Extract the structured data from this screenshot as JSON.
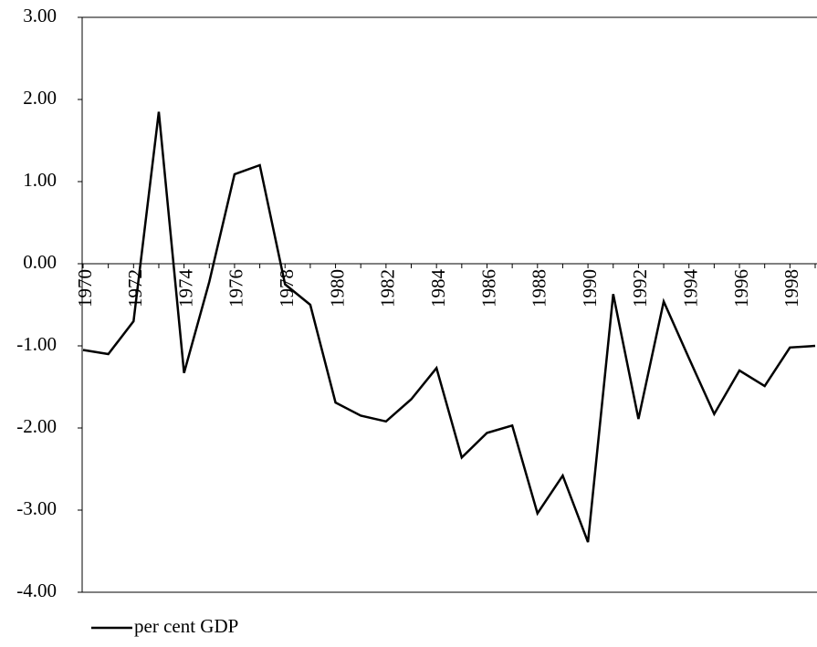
{
  "chart_data": {
    "type": "line",
    "categories": [
      "1970",
      null,
      "1972",
      null,
      "1974",
      null,
      "1976",
      null,
      "1978",
      null,
      "1980",
      null,
      "1982",
      null,
      "1984",
      null,
      "1986",
      null,
      "1988",
      null,
      "1990",
      null,
      "1992",
      null,
      "1994",
      null,
      "1996",
      null,
      "1998",
      null
    ],
    "series": [
      {
        "name": "per cent GDP",
        "color": "#000000",
        "values": [
          -1.05,
          -1.1,
          -0.7,
          1.85,
          -1.33,
          -0.22,
          1.09,
          1.2,
          -0.25,
          -0.5,
          -1.69,
          -1.85,
          -1.92,
          -1.65,
          -1.27,
          -2.36,
          -2.06,
          -1.97,
          -3.04,
          -2.58,
          -3.39,
          -0.37,
          -1.89,
          -0.46,
          -1.15,
          -1.83,
          -1.3,
          -1.49,
          -1.02,
          -1.0
        ]
      }
    ],
    "ylim": [
      -4,
      3
    ],
    "yticks": [
      {
        "value": 3,
        "label": "3.00"
      },
      {
        "value": 2,
        "label": "2.00"
      },
      {
        "value": 1,
        "label": "1.00"
      },
      {
        "value": 0,
        "label": "0.00"
      },
      {
        "value": -1,
        "label": "-1.00"
      },
      {
        "value": -2,
        "label": "-2.00"
      },
      {
        "value": -3,
        "label": "-3.00"
      },
      {
        "value": -4,
        "label": "-4.00"
      }
    ],
    "grid": false,
    "legend": "bottom-left"
  }
}
